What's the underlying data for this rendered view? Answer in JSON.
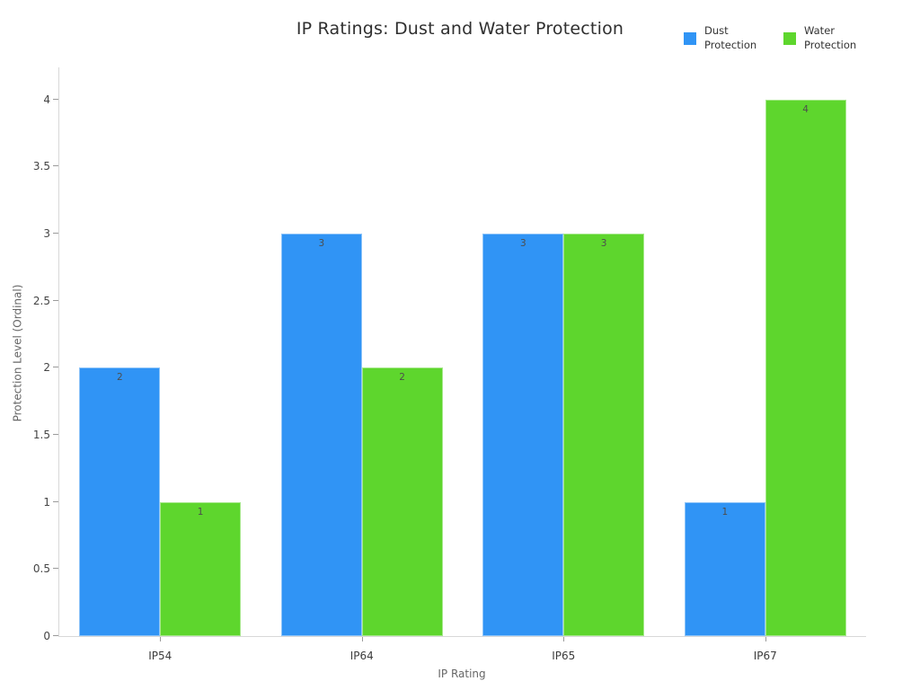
{
  "title": "IP Ratings: Dust and Water Protection",
  "chart_data": {
    "type": "bar",
    "title": "IP Ratings: Dust and Water Protection",
    "categories": [
      "IP54",
      "IP64",
      "IP65",
      "IP67"
    ],
    "series": [
      {
        "name": "Dust Protection",
        "color": "#3094F5",
        "values": [
          2,
          3,
          3,
          1
        ]
      },
      {
        "name": "Water Protection",
        "color": "#5ED62D",
        "values": [
          1,
          2,
          3,
          4
        ]
      }
    ],
    "xlabel": "IP Rating",
    "ylabel": "Protection Level (Ordinal)",
    "ylim": [
      0,
      4.24
    ],
    "yticks": [
      0,
      0.5,
      1,
      1.5,
      2,
      2.5,
      3,
      3.5,
      4
    ],
    "grid": false,
    "legend_position": "top-right",
    "bar_value_labels": true,
    "colors": {
      "axis_line": "#d8d8d8",
      "tick_mark": "#9a9a9a",
      "tick_text": "#444444",
      "title_text": "#2f2f2f",
      "axis_title_text": "#666666",
      "bar_label_text": "#4d4d4d"
    }
  }
}
